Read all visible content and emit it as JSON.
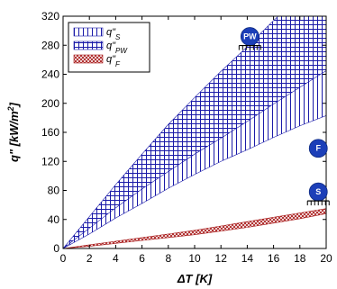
{
  "chart_data": {
    "type": "area",
    "xlabel": "ΔT [K]",
    "ylabel": "q\" [kW/m²]",
    "xlim": [
      0,
      20
    ],
    "ylim": [
      0,
      320
    ],
    "x_ticks": [
      0,
      2,
      4,
      6,
      8,
      10,
      12,
      14,
      16,
      18,
      20
    ],
    "y_ticks": [
      0,
      40,
      80,
      120,
      160,
      200,
      240,
      280,
      320
    ],
    "grid": false,
    "legend_position": "top-left",
    "x": [
      0,
      2,
      4,
      6,
      8,
      10,
      12,
      14,
      16,
      18,
      20
    ],
    "series": [
      {
        "name": "q\"S",
        "color": "#1a1aa8",
        "hatch": "vertical",
        "lower": [
          0,
          20,
          42,
          62,
          83,
          102,
          120,
          136,
          153,
          169,
          183
        ],
        "upper": [
          0,
          34,
          68,
          103,
          136,
          166,
          194,
          220,
          246,
          270,
          292
        ]
      },
      {
        "name": "q\"PW",
        "color": "#1a1aa8",
        "hatch": "cross",
        "lower": [
          0,
          28,
          56,
          82,
          106,
          130,
          152,
          175,
          199,
          222,
          245
        ],
        "upper": [
          0,
          44,
          88,
          130,
          171,
          208,
          244,
          278,
          314,
          348,
          380
        ]
      },
      {
        "name": "q\"F",
        "color": "#a81a1a",
        "hatch": "diagonal-cross",
        "lower": [
          0,
          3,
          7,
          11,
          15,
          19,
          24,
          29,
          35,
          41,
          48
        ],
        "upper": [
          0,
          5,
          10,
          15,
          20,
          25,
          31,
          37,
          43,
          49,
          55
        ]
      }
    ],
    "legend": [
      {
        "label": "q\"S",
        "base": "q\"",
        "sub": "S"
      },
      {
        "label": "q\"PW",
        "base": "q\"",
        "sub": "PW"
      },
      {
        "label": "q\"F",
        "base": "q\"",
        "sub": "F"
      }
    ],
    "badges": [
      {
        "label": "PW",
        "x": 14.2,
        "y": 292,
        "icon": "pool-boiling-heater-icon"
      },
      {
        "label": "F",
        "x": 19.4,
        "y": 138,
        "icon": "flow-boiling-icon"
      },
      {
        "label": "S",
        "x": 19.4,
        "y": 78,
        "icon": "pool-boiling-heater-icon"
      }
    ],
    "badge_color": "#1c3fb8"
  }
}
